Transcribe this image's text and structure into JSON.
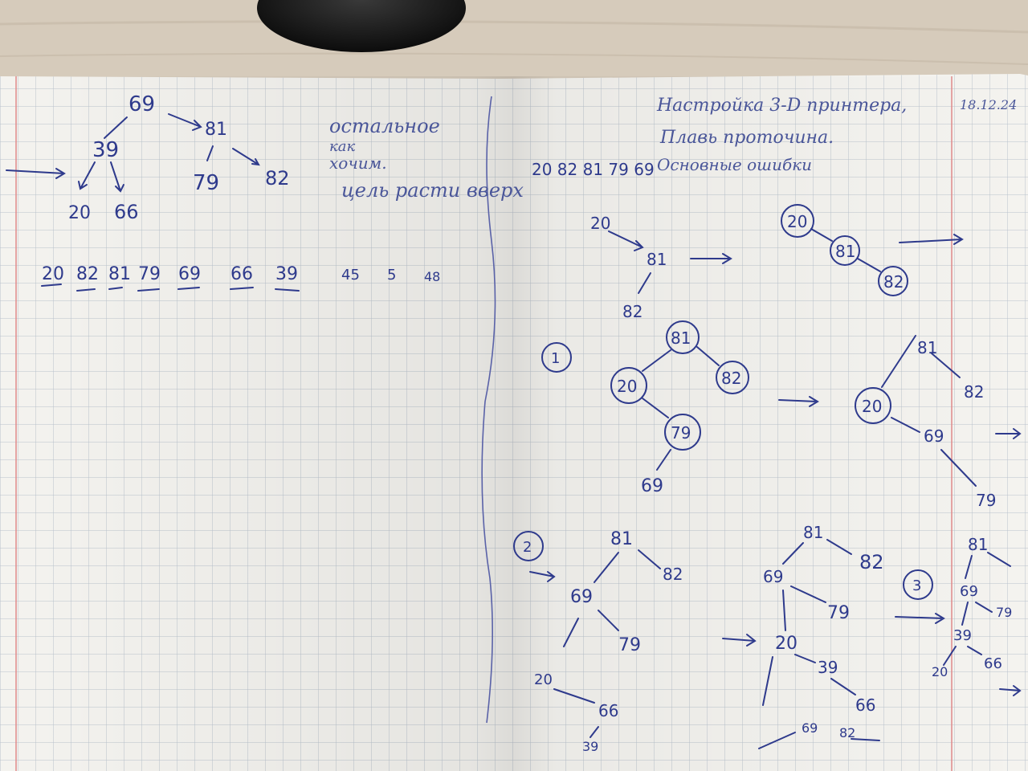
{
  "left_page": {
    "tree_top": {
      "root": "69",
      "left": "39",
      "right": "81",
      "ll": "20",
      "lr": "66",
      "rl": "79",
      "rr": "82"
    },
    "notes": [
      "остальное",
      "как",
      "хочим.",
      "цель расти вверх"
    ],
    "sequence": [
      "20",
      "82",
      "81",
      "79",
      "69",
      "66",
      "39",
      "45",
      "5",
      "48"
    ]
  },
  "right_page": {
    "header_lines": [
      "Настройка 3-D принтера,",
      "Плавь проточина.",
      "Основные ошибки"
    ],
    "date": "18.12.24",
    "top_sequence": "20 82 81 79 69",
    "step_labels": [
      "1",
      "2",
      "3"
    ],
    "tree_a": [
      "20",
      "81",
      "82"
    ],
    "tree_b": [
      "20",
      "81",
      "82"
    ],
    "tree_c": [
      "81",
      "20",
      "82",
      "79",
      "69"
    ],
    "tree_d": [
      "81",
      "20",
      "82",
      "69",
      "79"
    ],
    "tree_e": [
      "81",
      "69",
      "82",
      "20",
      "79",
      "66",
      "39"
    ],
    "tree_f": [
      "81",
      "69",
      "82",
      "79",
      "20",
      "39",
      "66",
      "69",
      "82"
    ],
    "tree_g": [
      "81",
      "69",
      "79",
      "39",
      "20",
      "66"
    ]
  },
  "colors": {
    "ink": "#2e3a8c",
    "paper": "#f4f3ef",
    "grid": "#b9c2cc",
    "desk": "#d8cdbf",
    "margin": "#e08a8a"
  }
}
